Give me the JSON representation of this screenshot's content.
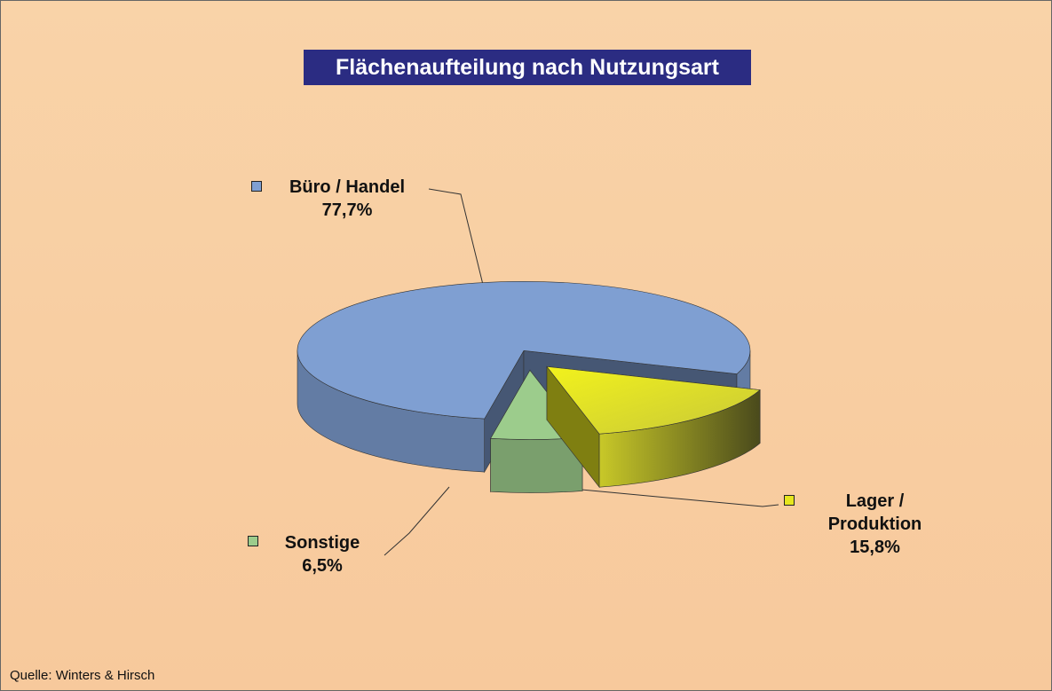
{
  "chart_data": {
    "type": "pie3d",
    "title": "Flächenaufteilung nach Nutzungsart",
    "categories": [
      "Büro / Handel",
      "Lager / Produktion",
      "Sonstige"
    ],
    "values": [
      77.7,
      15.8,
      6.5
    ],
    "value_labels": [
      "77,7%",
      "15,8%",
      "6,5%"
    ],
    "colors": [
      "#7f9fd2",
      "#e6e61e",
      "#9ccc8c"
    ],
    "source": "Quelle:  Winters & Hirsch"
  }
}
